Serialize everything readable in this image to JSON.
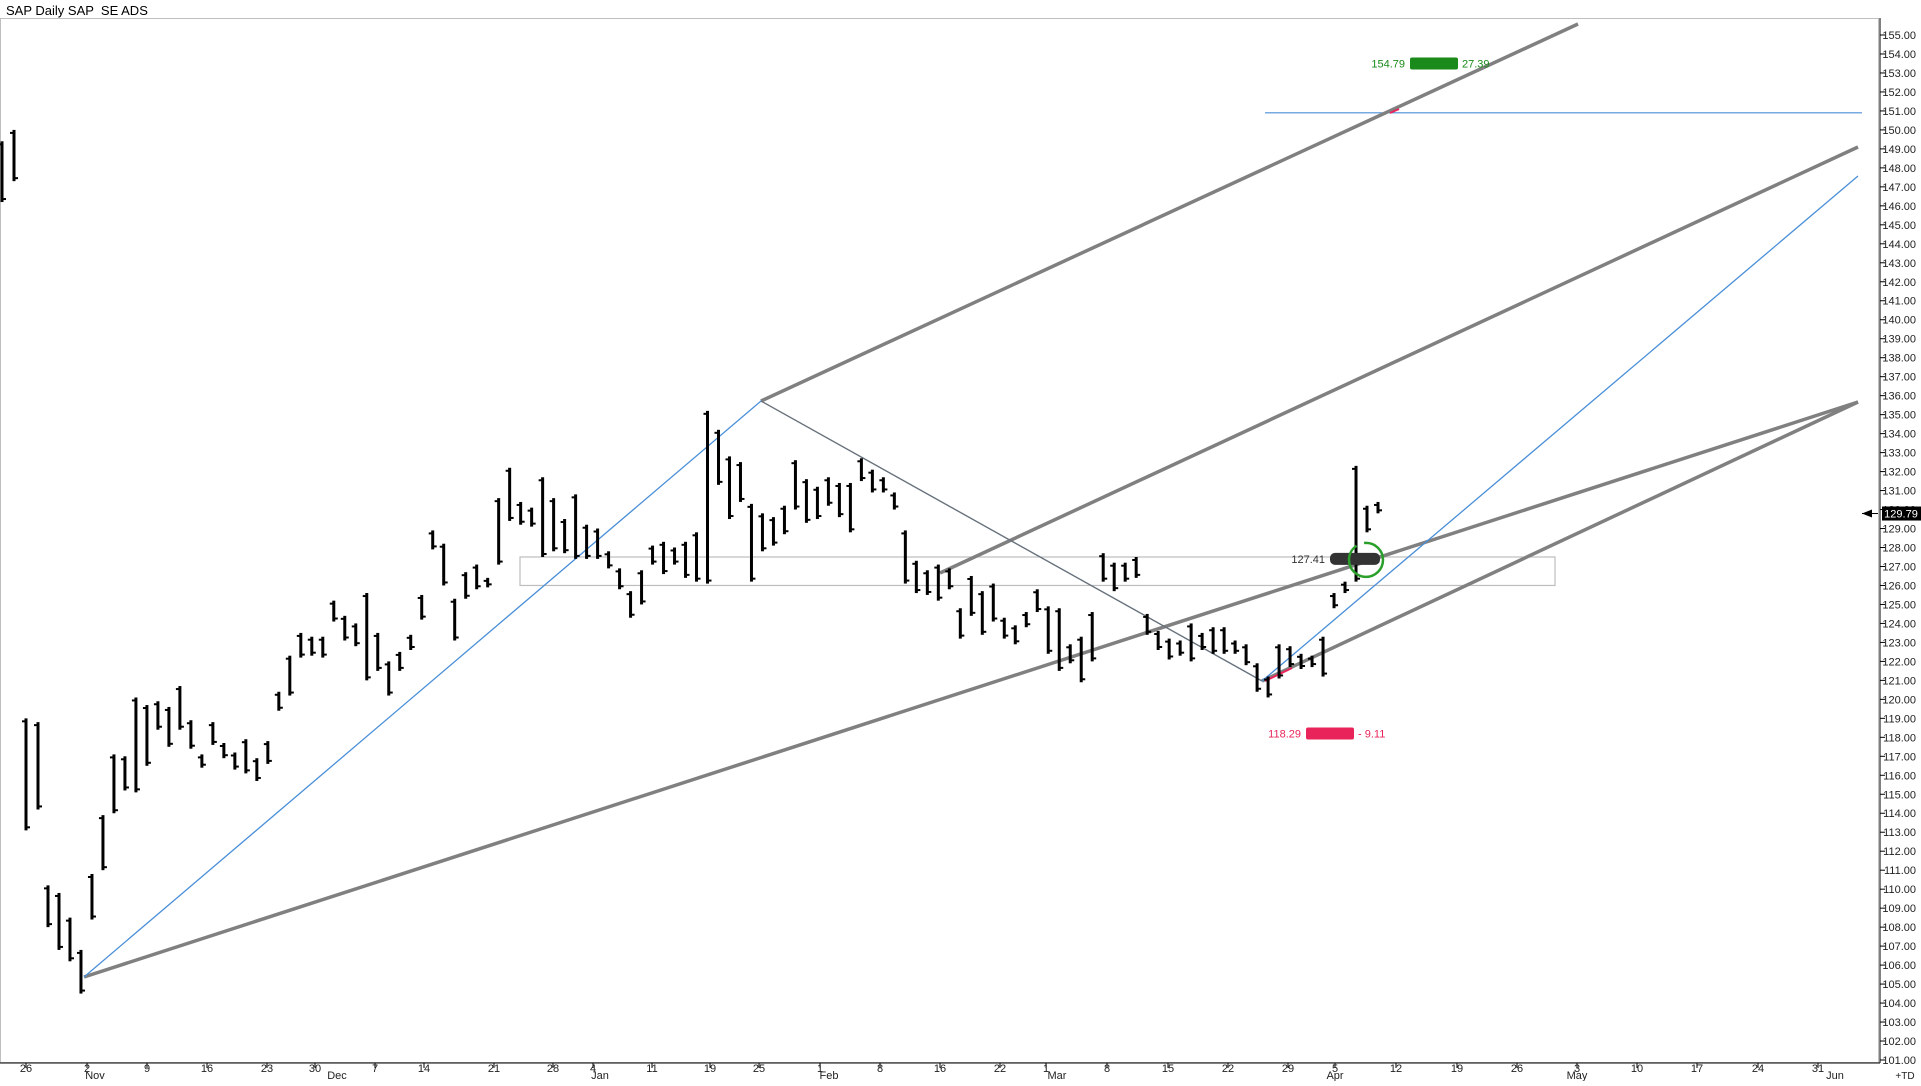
{
  "chart_data": {
    "type": "bar",
    "title": "SAP Daily SAP  SE ADS",
    "subtitle": "",
    "xlabel": "",
    "ylabel": "",
    "ylim": [
      101,
      155
    ],
    "y_ticks": [
      101,
      102,
      103,
      104,
      105,
      106,
      107,
      108,
      109,
      110,
      111,
      112,
      113,
      114,
      115,
      116,
      117,
      118,
      119,
      120,
      121,
      122,
      123,
      124,
      125,
      126,
      127,
      128,
      129,
      130,
      131,
      132,
      133,
      134,
      135,
      136,
      137,
      138,
      139,
      140,
      141,
      142,
      143,
      144,
      145,
      146,
      147,
      148,
      149,
      150,
      151,
      152,
      153,
      154,
      155
    ],
    "y_tick_format": "2dec",
    "last_price_label": "129.79",
    "x_day_labels": [
      "26",
      "2",
      "9",
      "16",
      "23",
      "30",
      "7",
      "14",
      "21",
      "28",
      "4",
      "11",
      "19",
      "25",
      "1",
      "8",
      "16",
      "22",
      "1",
      "8",
      "15",
      "22",
      "29",
      "5",
      "12",
      "19",
      "26",
      "3",
      "10",
      "17",
      "24",
      "31"
    ],
    "x_month_labels": [
      "Nov",
      "Dec",
      "Jan",
      "Feb",
      "Mar",
      "Apr",
      "May",
      "Jun"
    ],
    "x_right_label": "+TD",
    "ohlc_bars": [
      {
        "h": 149.4,
        "l": 146.2
      },
      {
        "h": 150.0,
        "l": 147.3
      },
      {
        "h": 119.0,
        "l": 113.1
      },
      {
        "h": 118.8,
        "l": 114.2
      },
      {
        "h": 110.2,
        "l": 108.0
      },
      {
        "h": 109.8,
        "l": 106.8
      },
      {
        "h": 108.5,
        "l": 106.2
      },
      {
        "h": 106.8,
        "l": 104.5
      },
      {
        "h": 110.8,
        "l": 108.4
      },
      {
        "h": 113.9,
        "l": 111.0
      },
      {
        "h": 117.1,
        "l": 114.0
      },
      {
        "h": 117.0,
        "l": 115.2
      },
      {
        "h": 120.1,
        "l": 115.1
      },
      {
        "h": 119.7,
        "l": 116.5
      },
      {
        "h": 119.9,
        "l": 118.4
      },
      {
        "h": 119.6,
        "l": 117.5
      },
      {
        "h": 120.7,
        "l": 118.4
      },
      {
        "h": 118.9,
        "l": 117.4
      },
      {
        "h": 117.1,
        "l": 116.4
      },
      {
        "h": 118.8,
        "l": 117.6
      },
      {
        "h": 117.7,
        "l": 116.9
      },
      {
        "h": 117.2,
        "l": 116.3
      },
      {
        "h": 117.9,
        "l": 116.1
      },
      {
        "h": 116.9,
        "l": 115.7
      },
      {
        "h": 117.8,
        "l": 116.6
      },
      {
        "h": 120.4,
        "l": 119.4
      },
      {
        "h": 122.3,
        "l": 120.2
      },
      {
        "h": 123.5,
        "l": 122.2
      },
      {
        "h": 123.3,
        "l": 122.3
      },
      {
        "h": 123.3,
        "l": 122.2
      },
      {
        "h": 125.2,
        "l": 124.1
      },
      {
        "h": 124.4,
        "l": 123.1
      },
      {
        "h": 124.0,
        "l": 122.8
      },
      {
        "h": 125.6,
        "l": 121.0
      },
      {
        "h": 123.5,
        "l": 121.5
      },
      {
        "h": 122.0,
        "l": 120.2
      },
      {
        "h": 122.5,
        "l": 121.5
      },
      {
        "h": 123.4,
        "l": 122.6
      },
      {
        "h": 125.5,
        "l": 124.2
      },
      {
        "h": 128.9,
        "l": 127.9
      },
      {
        "h": 128.2,
        "l": 126.0
      },
      {
        "h": 125.3,
        "l": 123.1
      },
      {
        "h": 126.7,
        "l": 125.3
      },
      {
        "h": 127.1,
        "l": 125.8
      },
      {
        "h": 126.4,
        "l": 125.9
      },
      {
        "h": 130.6,
        "l": 127.1
      },
      {
        "h": 132.2,
        "l": 129.4
      },
      {
        "h": 130.4,
        "l": 129.2
      },
      {
        "h": 130.1,
        "l": 129.1
      },
      {
        "h": 131.7,
        "l": 127.5
      },
      {
        "h": 130.6,
        "l": 127.8
      },
      {
        "h": 129.5,
        "l": 127.7
      },
      {
        "h": 130.8,
        "l": 127.4
      },
      {
        "h": 129.2,
        "l": 127.4
      },
      {
        "h": 129.0,
        "l": 127.4
      },
      {
        "h": 127.8,
        "l": 126.9
      },
      {
        "h": 126.9,
        "l": 125.8
      },
      {
        "h": 125.7,
        "l": 124.3
      },
      {
        "h": 126.8,
        "l": 125.0
      },
      {
        "h": 128.1,
        "l": 127.1
      },
      {
        "h": 128.3,
        "l": 126.6
      },
      {
        "h": 128.0,
        "l": 127.1
      },
      {
        "h": 128.3,
        "l": 126.4
      },
      {
        "h": 128.8,
        "l": 126.2
      },
      {
        "h": 135.2,
        "l": 126.1
      },
      {
        "h": 134.2,
        "l": 131.3
      },
      {
        "h": 132.8,
        "l": 129.5
      },
      {
        "h": 132.5,
        "l": 130.4
      },
      {
        "h": 130.3,
        "l": 126.2
      },
      {
        "h": 129.8,
        "l": 127.8
      },
      {
        "h": 129.6,
        "l": 128.1
      },
      {
        "h": 130.2,
        "l": 128.7
      },
      {
        "h": 132.6,
        "l": 130.0
      },
      {
        "h": 131.6,
        "l": 129.3
      },
      {
        "h": 131.2,
        "l": 129.5
      },
      {
        "h": 131.7,
        "l": 130.2
      },
      {
        "h": 131.4,
        "l": 129.6
      },
      {
        "h": 131.4,
        "l": 128.8
      },
      {
        "h": 132.7,
        "l": 131.5
      },
      {
        "h": 132.1,
        "l": 130.9
      },
      {
        "h": 131.7,
        "l": 130.9
      },
      {
        "h": 130.9,
        "l": 130.0
      },
      {
        "h": 128.9,
        "l": 126.1
      },
      {
        "h": 127.3,
        "l": 125.6
      },
      {
        "h": 126.8,
        "l": 125.5
      },
      {
        "h": 127.1,
        "l": 125.2
      },
      {
        "h": 126.9,
        "l": 125.8
      },
      {
        "h": 124.8,
        "l": 123.2
      },
      {
        "h": 126.5,
        "l": 124.4
      },
      {
        "h": 125.7,
        "l": 123.4
      },
      {
        "h": 126.1,
        "l": 124.1
      },
      {
        "h": 124.3,
        "l": 123.2
      },
      {
        "h": 123.9,
        "l": 122.9
      },
      {
        "h": 124.6,
        "l": 123.8
      },
      {
        "h": 125.8,
        "l": 124.6
      },
      {
        "h": 124.9,
        "l": 122.4
      },
      {
        "h": 124.8,
        "l": 121.5
      },
      {
        "h": 122.9,
        "l": 121.9
      },
      {
        "h": 123.3,
        "l": 120.9
      },
      {
        "h": 124.6,
        "l": 122.0
      },
      {
        "h": 127.7,
        "l": 126.2
      },
      {
        "h": 127.2,
        "l": 125.7
      },
      {
        "h": 127.2,
        "l": 126.2
      },
      {
        "h": 127.5,
        "l": 126.4
      },
      {
        "h": 124.5,
        "l": 123.4
      },
      {
        "h": 123.6,
        "l": 122.6
      },
      {
        "h": 123.2,
        "l": 122.1
      },
      {
        "h": 123.1,
        "l": 122.3
      },
      {
        "h": 124.0,
        "l": 122.0
      },
      {
        "h": 123.5,
        "l": 122.6
      },
      {
        "h": 123.8,
        "l": 122.4
      },
      {
        "h": 123.8,
        "l": 122.4
      },
      {
        "h": 123.1,
        "l": 122.4
      },
      {
        "h": 122.9,
        "l": 121.8
      },
      {
        "h": 121.9,
        "l": 120.4
      },
      {
        "h": 121.2,
        "l": 120.1
      },
      {
        "h": 122.9,
        "l": 121.1
      },
      {
        "h": 122.8,
        "l": 121.7
      },
      {
        "h": 122.4,
        "l": 121.6
      },
      {
        "h": 122.3,
        "l": 121.7
      },
      {
        "h": 123.3,
        "l": 121.2
      },
      {
        "h": 125.6,
        "l": 124.8
      },
      {
        "h": 126.2,
        "l": 125.6
      },
      {
        "h": 132.3,
        "l": 126.2
      },
      {
        "h": 130.2,
        "l": 128.8
      },
      {
        "h": 130.4,
        "l": 129.8
      }
    ],
    "annotations": {
      "target_high": {
        "value": "154.79",
        "change": "27.39",
        "color": "#1a8a1a"
      },
      "target_low": {
        "value": "118.29",
        "change": "- 9.11",
        "color": "#e8245a"
      },
      "mid_label": "127.41",
      "horizontal_level": 150.9,
      "box_range": [
        126.0,
        127.5
      ]
    },
    "colors": {
      "bars": "#000000",
      "trend_gray": "#808080",
      "trend_blue": "#4a8fd8",
      "box": "#bdbdbd",
      "circle": "#2aa02a"
    },
    "grid": false,
    "legend": "none"
  }
}
